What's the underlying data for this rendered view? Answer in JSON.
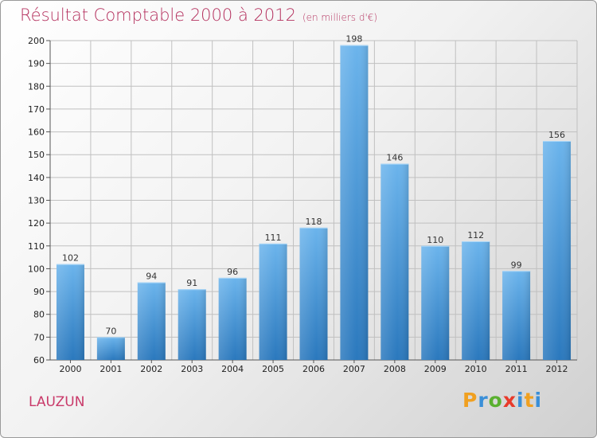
{
  "chart_data": {
    "type": "bar",
    "title": "Résultat Comptable 2000 à 2012",
    "subtitle": "(en milliers d'€)",
    "categories": [
      "2000",
      "2001",
      "2002",
      "2003",
      "2004",
      "2005",
      "2006",
      "2007",
      "2008",
      "2009",
      "2010",
      "2011",
      "2012"
    ],
    "values": [
      102,
      70,
      94,
      91,
      96,
      111,
      118,
      198,
      146,
      110,
      112,
      99,
      156
    ],
    "ylim": [
      60,
      200
    ],
    "yticks": [
      60,
      70,
      80,
      90,
      100,
      110,
      120,
      130,
      140,
      150,
      160,
      170,
      180,
      190,
      200
    ],
    "grid": true,
    "xlabel": "",
    "ylabel": ""
  },
  "place_name": "LAUZUN",
  "logo": {
    "letters": [
      "P",
      "r",
      "o",
      "x",
      "i",
      "t",
      "i"
    ],
    "colors": [
      "#f0a020",
      "#3a8fd8",
      "#5ab030",
      "#e83a2a",
      "#3a8fd8",
      "#f0a020",
      "#3a8fd8"
    ]
  },
  "colors": {
    "bar_light": "#6bb4ec",
    "bar_dark": "#2a78bd",
    "title": "#b5325f",
    "grid": "#c0c0c0"
  }
}
